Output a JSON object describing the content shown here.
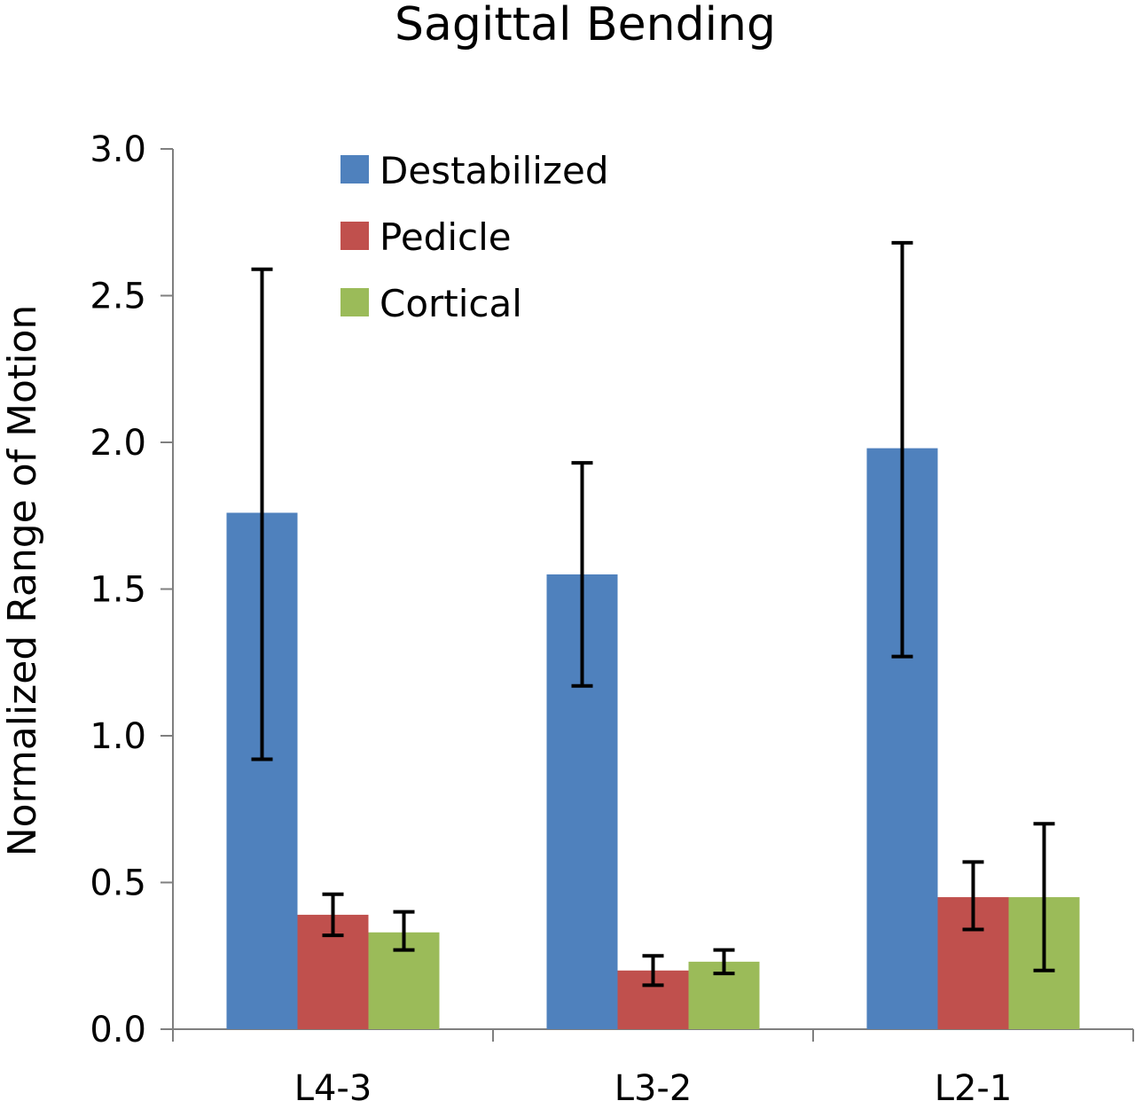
{
  "chart_data": {
    "type": "bar",
    "title": "Sagittal Bending",
    "xlabel": "",
    "ylabel": "Normalized Range of Motion",
    "categories": [
      "L4-3",
      "L3-2",
      "L2-1"
    ],
    "ylim": [
      0,
      3.0
    ],
    "yticks": [
      "0.0",
      "0.5",
      "1.0",
      "1.5",
      "2.0",
      "2.5",
      "3.0"
    ],
    "grid": false,
    "legend_position": "top-left",
    "series": [
      {
        "name": "Destabilized",
        "color": "#4F81BD",
        "values": [
          1.76,
          1.55,
          1.98
        ],
        "error_low": [
          0.92,
          1.17,
          1.27
        ],
        "error_high": [
          2.59,
          1.93,
          2.68
        ]
      },
      {
        "name": "Pedicle",
        "color": "#C0504D",
        "values": [
          0.39,
          0.2,
          0.45
        ],
        "error_low": [
          0.32,
          0.15,
          0.34
        ],
        "error_high": [
          0.46,
          0.25,
          0.57
        ]
      },
      {
        "name": "Cortical",
        "color": "#9BBB59",
        "values": [
          0.33,
          0.23,
          0.45
        ],
        "error_low": [
          0.27,
          0.19,
          0.2
        ],
        "error_high": [
          0.4,
          0.27,
          0.7
        ]
      }
    ]
  }
}
